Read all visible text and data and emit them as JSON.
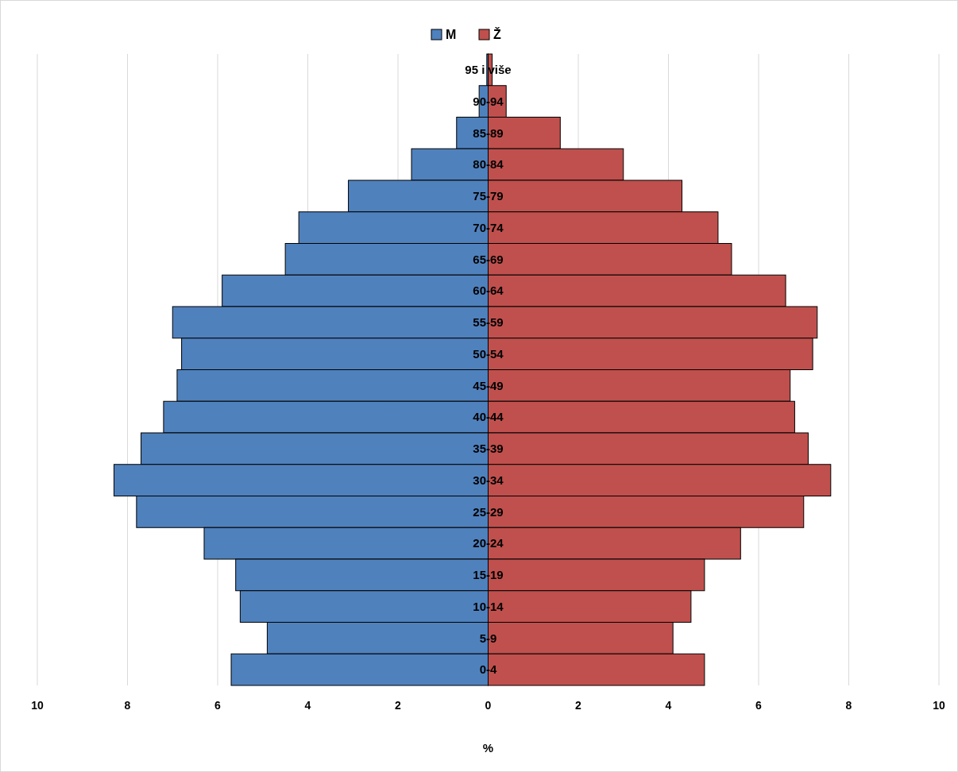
{
  "chart_data": {
    "type": "bar",
    "orientation": "horizontal",
    "categories": [
      "95 i više",
      "90-94",
      "85-89",
      "80-84",
      "75-79",
      "70-74",
      "65-69",
      "60-64",
      "55-59",
      "50-54",
      "45-49",
      "40-44",
      "35-39",
      "30-34",
      "25-29",
      "20-24",
      "15-19",
      "10-14",
      "5-9",
      "0-4"
    ],
    "series": [
      {
        "name": "M",
        "color": "#4f81bd",
        "values": [
          -0.03,
          -0.2,
          -0.7,
          -1.7,
          -3.1,
          -4.2,
          -4.5,
          -5.9,
          -7.0,
          -6.8,
          -6.9,
          -7.2,
          -7.7,
          -8.3,
          -7.8,
          -6.3,
          -5.6,
          -5.5,
          -4.9,
          -5.7
        ]
      },
      {
        "name": "Ž",
        "color": "#c0504d",
        "values": [
          0.09,
          0.4,
          1.6,
          3.0,
          4.3,
          5.1,
          5.4,
          6.6,
          7.3,
          7.2,
          6.7,
          6.8,
          7.1,
          7.6,
          7.0,
          5.6,
          4.8,
          4.5,
          4.1,
          4.8
        ]
      }
    ],
    "xlim": [
      -10,
      10
    ],
    "xticks": [
      {
        "value": -10,
        "label": "10"
      },
      {
        "value": -8,
        "label": "8"
      },
      {
        "value": -6,
        "label": "6"
      },
      {
        "value": -4,
        "label": "4"
      },
      {
        "value": -2,
        "label": "2"
      },
      0,
      2,
      4,
      6,
      8,
      10
    ],
    "xlabel": "%",
    "stacked": true,
    "grid": "x",
    "legend": "top"
  }
}
